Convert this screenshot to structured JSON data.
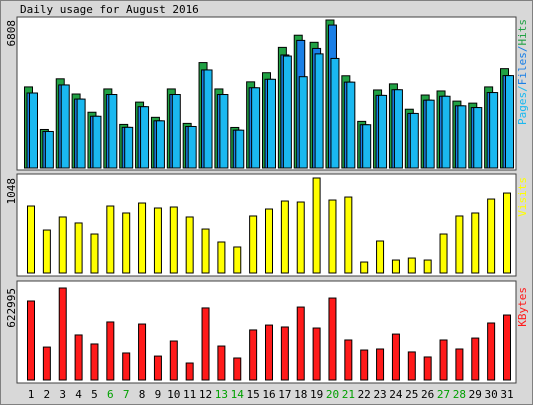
{
  "chart_data": [
    {
      "type": "bar",
      "title": "Daily usage for August 2016",
      "ylim": [
        0,
        6808
      ],
      "yticks": [
        6808
      ],
      "legend_separator": "/",
      "series": [
        {
          "name": "Hits",
          "color": "#21a144",
          "values": [
            3730,
            1772,
            4103,
            3404,
            2565,
            3637,
            2005,
            3031,
            2331,
            3637,
            2052,
            4849,
            3637,
            1865,
            3963,
            4383,
            5549,
            6108,
            5782,
            6808,
            4243,
            2145,
            3590,
            3870,
            2704,
            3357,
            3544,
            3077,
            2984,
            3730,
            4570
          ]
        },
        {
          "name": "Files",
          "color": "#1a7fe6",
          "values": [
            3450,
            1680,
            3820,
            3170,
            2380,
            3380,
            1870,
            2820,
            2170,
            3380,
            1910,
            4510,
            3380,
            1740,
            3690,
            4080,
            5200,
            5870,
            5500,
            6575,
            3950,
            1990,
            3340,
            3600,
            2510,
            3120,
            3300,
            2860,
            2780,
            3470,
            4250
          ]
        },
        {
          "name": "Pages",
          "color": "#1ab8f0",
          "values": [
            3450,
            1680,
            3820,
            3170,
            2380,
            3380,
            1870,
            2820,
            2170,
            3380,
            1910,
            4510,
            3380,
            1740,
            3690,
            4080,
            5150,
            4200,
            5250,
            5040,
            3950,
            1990,
            3340,
            3600,
            2510,
            3120,
            3300,
            2860,
            2780,
            3470,
            4250
          ]
        }
      ]
    },
    {
      "type": "bar",
      "ylim": [
        0,
        1048
      ],
      "yticks": [
        1048
      ],
      "series": [
        {
          "name": "Visits",
          "color": "#ffff00",
          "values": [
            739,
            474,
            618,
            552,
            430,
            739,
            662,
            772,
            717,
            728,
            618,
            485,
            342,
            287,
            629,
            706,
            794,
            783,
            1048,
            805,
            838,
            121,
            353,
            143,
            165,
            143,
            430,
            629,
            662,
            816,
            882
          ]
        }
      ]
    },
    {
      "type": "bar",
      "ylim": [
        0,
        622995
      ],
      "yticks": [
        622995
      ],
      "categories": [
        "1",
        "2",
        "3",
        "4",
        "5",
        "6",
        "7",
        "8",
        "9",
        "10",
        "11",
        "12",
        "13",
        "14",
        "15",
        "16",
        "17",
        "18",
        "19",
        "20",
        "21",
        "22",
        "23",
        "24",
        "25",
        "26",
        "27",
        "28",
        "29",
        "30",
        "31"
      ],
      "category_colors": [
        "#000000",
        "#000000",
        "#000000",
        "#000000",
        "#000000",
        "#00a000",
        "#00a000",
        "#000000",
        "#000000",
        "#000000",
        "#000000",
        "#000000",
        "#00a000",
        "#00a000",
        "#000000",
        "#000000",
        "#000000",
        "#000000",
        "#000000",
        "#00a000",
        "#00a000",
        "#000000",
        "#000000",
        "#000000",
        "#000000",
        "#000000",
        "#00a000",
        "#00a000",
        "#000000",
        "#000000",
        "#000000"
      ],
      "series": [
        {
          "name": "KBytes",
          "color": "#ff1a1a",
          "values": [
            535000,
            223000,
            622995,
            305000,
            244000,
            393000,
            183000,
            379000,
            162000,
            264000,
            115000,
            488000,
            230000,
            149000,
            339000,
            372000,
            359000,
            494000,
            352000,
            555000,
            271000,
            203000,
            210000,
            311000,
            190000,
            156000,
            271000,
            210000,
            284000,
            386000,
            440000
          ]
        }
      ]
    }
  ]
}
